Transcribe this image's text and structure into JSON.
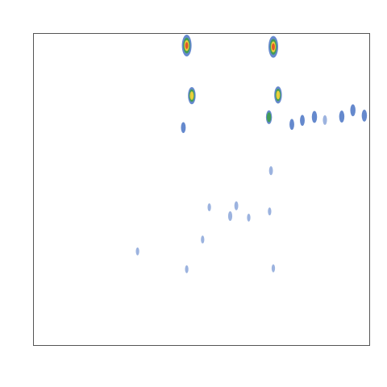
{
  "colors": {
    "background": "#ffffff",
    "frame": "#555555",
    "low": "#4a74c4",
    "mid": "#3e9e4a",
    "high": "#e0522a",
    "peak": "#f2d23a"
  },
  "chart_data": {
    "type": "heatmap",
    "title": "",
    "xlabel": "",
    "ylabel": "",
    "xlim": [
      0,
      100
    ],
    "ylim": [
      0,
      100
    ],
    "grid": false,
    "legend": "none",
    "spots": [
      {
        "x": 45.6,
        "y": 96.0,
        "intensity": 1.0
      },
      {
        "x": 71.3,
        "y": 95.6,
        "intensity": 1.0
      },
      {
        "x": 47.1,
        "y": 80.0,
        "intensity": 0.55
      },
      {
        "x": 72.7,
        "y": 80.2,
        "intensity": 0.55
      },
      {
        "x": 70.0,
        "y": 73.1,
        "intensity": 0.3
      },
      {
        "x": 44.6,
        "y": 69.8,
        "intensity": 0.15
      },
      {
        "x": 76.8,
        "y": 70.8,
        "intensity": 0.15
      },
      {
        "x": 79.9,
        "y": 72.1,
        "intensity": 0.15
      },
      {
        "x": 83.5,
        "y": 73.2,
        "intensity": 0.2
      },
      {
        "x": 86.6,
        "y": 72.2,
        "intensity": 0.1
      },
      {
        "x": 91.6,
        "y": 73.3,
        "intensity": 0.2
      },
      {
        "x": 94.9,
        "y": 75.3,
        "intensity": 0.2
      },
      {
        "x": 98.3,
        "y": 73.6,
        "intensity": 0.2
      },
      {
        "x": 70.6,
        "y": 56.0,
        "intensity": 0.08
      },
      {
        "x": 60.3,
        "y": 44.8,
        "intensity": 0.08
      },
      {
        "x": 58.5,
        "y": 41.5,
        "intensity": 0.1
      },
      {
        "x": 52.3,
        "y": 44.3,
        "intensity": 0.05
      },
      {
        "x": 64.0,
        "y": 41.0,
        "intensity": 0.05
      },
      {
        "x": 70.2,
        "y": 43.0,
        "intensity": 0.05
      },
      {
        "x": 50.3,
        "y": 34.0,
        "intensity": 0.05
      },
      {
        "x": 31.0,
        "y": 30.2,
        "intensity": 0.05
      },
      {
        "x": 45.6,
        "y": 24.5,
        "intensity": 0.05
      },
      {
        "x": 71.3,
        "y": 24.8,
        "intensity": 0.05
      }
    ]
  }
}
